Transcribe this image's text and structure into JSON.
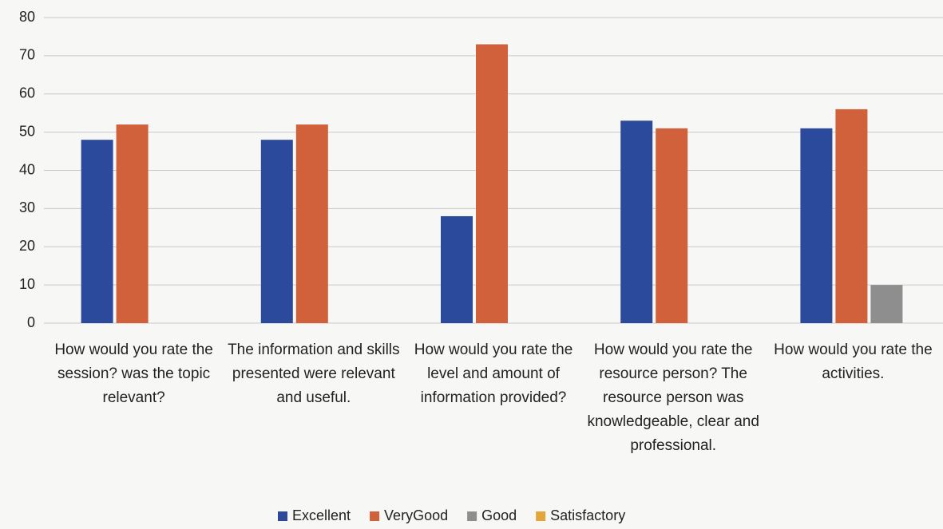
{
  "chart_data": {
    "type": "bar",
    "categories": [
      "How would you rate the session? was the topic relevant?",
      "The information and skills presented were relevant and useful.",
      "How would you rate the level and amount of information provided?",
      "How would you rate the resource person? The resource person was knowledgeable, clear and professional.",
      "How would you rate the activities."
    ],
    "series": [
      {
        "name": "Excellent",
        "color": "#2b4a9c",
        "values": [
          48,
          48,
          28,
          53,
          51
        ]
      },
      {
        "name": "VeryGood",
        "color": "#d0613a",
        "values": [
          52,
          52,
          73,
          51,
          56
        ]
      },
      {
        "name": "Good",
        "color": "#8e8e8e",
        "values": [
          0,
          0,
          0,
          0,
          10
        ]
      },
      {
        "name": "Satisfactory",
        "color": "#e3a63a",
        "values": [
          0,
          0,
          0,
          0,
          0
        ]
      }
    ],
    "ylim": [
      0,
      80
    ],
    "yticks": [
      0,
      10,
      20,
      30,
      40,
      50,
      60,
      70,
      80
    ],
    "grid": true,
    "legend": "bottom"
  }
}
